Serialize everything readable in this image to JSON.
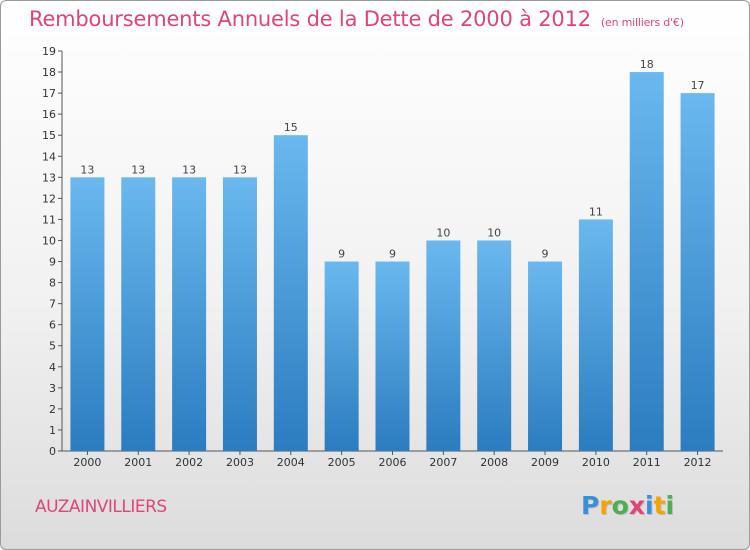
{
  "title": "Remboursements Annuels de la Dette de 2000 à 2012",
  "subtitle": "(en milliers d'€)",
  "commune": "AUZAINVILLIERS",
  "logo": {
    "letters": [
      "P",
      "r",
      "o",
      "x",
      "i",
      "t",
      "i"
    ],
    "colors": [
      "#3a8fd8",
      "#f2a500",
      "#4caf50",
      "#e0457a",
      "#3a8fd8",
      "#f2a500",
      "#4caf50"
    ]
  },
  "colors": {
    "bar_light": "#6ab8ee",
    "bar_dark": "#2b7cc0",
    "title": "#e0457a"
  },
  "chart_data": {
    "type": "bar",
    "categories": [
      "2000",
      "2001",
      "2002",
      "2003",
      "2004",
      "2005",
      "2006",
      "2007",
      "2008",
      "2009",
      "2010",
      "2011",
      "2012"
    ],
    "values": [
      13,
      13,
      13,
      13,
      15,
      9,
      9,
      10,
      10,
      9,
      11,
      18,
      17
    ],
    "title": "Remboursements Annuels de la Dette de 2000 à 2012",
    "ylim": [
      0,
      19
    ],
    "yticks": [
      "0",
      "1",
      "2",
      "3",
      "4",
      "5",
      "6",
      "7",
      "8",
      "9",
      "10",
      "11",
      "12",
      "13",
      "14",
      "15",
      "16",
      "17",
      "18",
      "19"
    ],
    "grid": false
  }
}
